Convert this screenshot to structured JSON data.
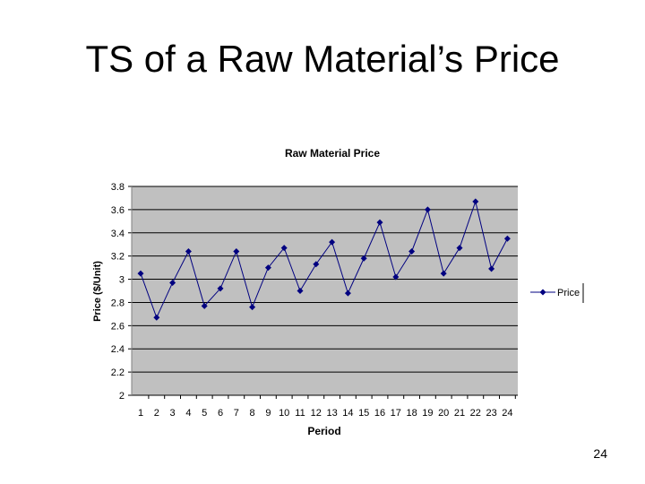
{
  "slide": {
    "title": "TS of a Raw Material’s Price",
    "page_number": "24"
  },
  "chart_data": {
    "type": "line",
    "title": "Raw Material Price",
    "xlabel": "Period",
    "ylabel": "Price ($/Unit)",
    "categories": [
      "1",
      "2",
      "3",
      "4",
      "5",
      "6",
      "7",
      "8",
      "9",
      "10",
      "11",
      "12",
      "13",
      "14",
      "15",
      "16",
      "17",
      "18",
      "19",
      "20",
      "21",
      "22",
      "23",
      "24"
    ],
    "series": [
      {
        "name": "Price",
        "values": [
          3.05,
          2.67,
          2.97,
          3.24,
          2.77,
          2.92,
          3.24,
          2.76,
          3.1,
          3.27,
          2.9,
          3.13,
          3.32,
          2.88,
          3.18,
          3.49,
          3.02,
          3.24,
          3.6,
          3.05,
          3.27,
          3.67,
          3.09,
          3.35
        ]
      }
    ],
    "ylim": [
      2,
      3.8
    ],
    "yticks": [
      "2",
      "2.2",
      "2.4",
      "2.6",
      "2.8",
      "3",
      "3.2",
      "3.4",
      "3.6",
      "3.8"
    ],
    "grid": true,
    "legend": "right",
    "colors": {
      "series": "#000080",
      "plot_bg": "#c0c0c0",
      "gridline": "#000000"
    }
  }
}
